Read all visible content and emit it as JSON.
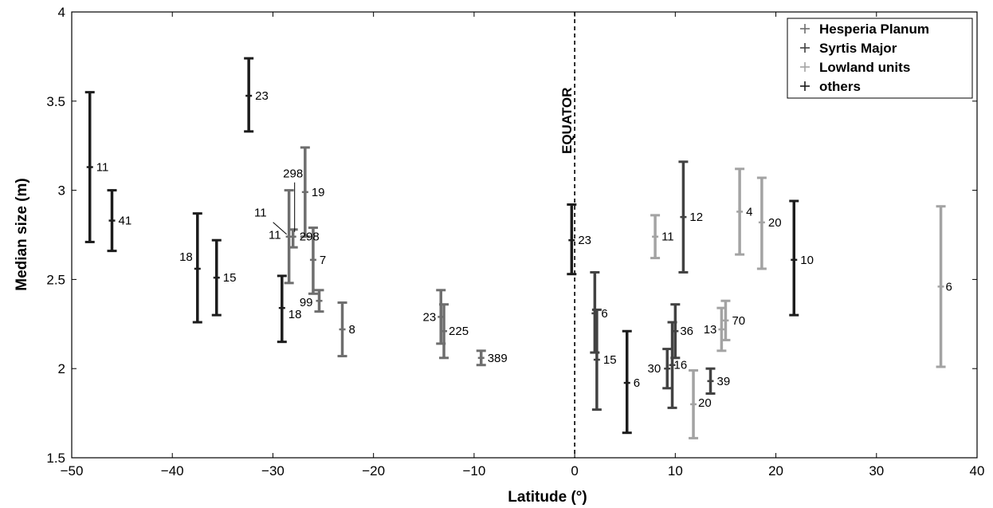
{
  "chart_data": {
    "type": "errorbar",
    "title": "",
    "xlabel": "Latitude (°)",
    "ylabel": "Median size (m)",
    "xlim": [
      -50,
      40
    ],
    "ylim": [
      1.5,
      4
    ],
    "xticks": [
      -50,
      -40,
      -30,
      -20,
      -10,
      0,
      10,
      20,
      30,
      40
    ],
    "xtick_labels": [
      "−50",
      "−40",
      "−30",
      "−20",
      "−10",
      "0",
      "10",
      "20",
      "30",
      "40"
    ],
    "yticks": [
      1.5,
      2,
      2.5,
      3,
      3.5,
      4
    ],
    "ytick_labels": [
      "1.5",
      "2",
      "2.5",
      "3",
      "3.5",
      "4"
    ],
    "grid": false,
    "legend_position": "top-right",
    "annotations": [
      {
        "text": "EQUATOR",
        "x": 0,
        "line": "dashed vertical"
      }
    ],
    "series": [
      {
        "name": "Hesperia Planum",
        "color": "#6e6e6e",
        "points": [
          {
            "x": -28.4,
            "y": 2.74,
            "low": 2.48,
            "high": 3.0,
            "n": "11"
          },
          {
            "x": -28.0,
            "y": 2.74,
            "low": 2.68,
            "high": 2.78,
            "n": "298"
          },
          {
            "x": -26.8,
            "y": 2.99,
            "low": 2.74,
            "high": 3.24,
            "n": "19"
          },
          {
            "x": -26.0,
            "y": 2.61,
            "low": 2.42,
            "high": 2.79,
            "n": "7"
          },
          {
            "x": -25.4,
            "y": 2.38,
            "low": 2.32,
            "high": 2.44,
            "n": "99"
          },
          {
            "x": -23.1,
            "y": 2.22,
            "low": 2.07,
            "high": 2.37,
            "n": "8"
          },
          {
            "x": -13.3,
            "y": 2.29,
            "low": 2.14,
            "high": 2.44,
            "n": "23"
          },
          {
            "x": -13.0,
            "y": 2.21,
            "low": 2.06,
            "high": 2.36,
            "n": "225"
          },
          {
            "x": -9.3,
            "y": 2.06,
            "low": 2.02,
            "high": 2.1,
            "n": "389"
          }
        ]
      },
      {
        "name": "Syrtis Major",
        "color": "#424242",
        "points": [
          {
            "x": 2.0,
            "y": 2.31,
            "low": 2.09,
            "high": 2.54,
            "n": "6"
          },
          {
            "x": 2.2,
            "y": 2.05,
            "low": 1.77,
            "high": 2.33,
            "n": "15"
          },
          {
            "x": 9.2,
            "y": 2.0,
            "low": 1.89,
            "high": 2.11,
            "n": "30"
          },
          {
            "x": 9.7,
            "y": 2.02,
            "low": 1.78,
            "high": 2.26,
            "n": "16"
          },
          {
            "x": 10.0,
            "y": 2.21,
            "low": 2.06,
            "high": 2.36,
            "n": "36"
          },
          {
            "x": 10.8,
            "y": 2.85,
            "low": 2.54,
            "high": 3.16,
            "n": "12"
          },
          {
            "x": 13.5,
            "y": 1.93,
            "low": 1.86,
            "high": 2.0,
            "n": "39"
          }
        ]
      },
      {
        "name": "Lowland units",
        "color": "#a3a3a3",
        "points": [
          {
            "x": 8.0,
            "y": 2.74,
            "low": 2.62,
            "high": 2.86,
            "n": "11"
          },
          {
            "x": 11.8,
            "y": 1.8,
            "low": 1.61,
            "high": 1.99,
            "n": "20"
          },
          {
            "x": 14.6,
            "y": 2.22,
            "low": 2.1,
            "high": 2.34,
            "n": "13"
          },
          {
            "x": 15.0,
            "y": 2.27,
            "low": 2.16,
            "high": 2.38,
            "n": "70"
          },
          {
            "x": 16.4,
            "y": 2.88,
            "low": 2.64,
            "high": 3.12,
            "n": "4"
          },
          {
            "x": 18.6,
            "y": 2.82,
            "low": 2.56,
            "high": 3.07,
            "n": "20"
          },
          {
            "x": 36.4,
            "y": 2.46,
            "low": 2.01,
            "high": 2.91,
            "n": "6"
          }
        ]
      },
      {
        "name": "others",
        "color": "#1c1c1c",
        "points": [
          {
            "x": -48.2,
            "y": 3.13,
            "low": 2.71,
            "high": 3.55,
            "n": "11"
          },
          {
            "x": -46.0,
            "y": 2.83,
            "low": 2.66,
            "high": 3.0,
            "n": "41"
          },
          {
            "x": -37.5,
            "y": 2.56,
            "low": 2.26,
            "high": 2.87,
            "n": "18"
          },
          {
            "x": -35.6,
            "y": 2.51,
            "low": 2.3,
            "high": 2.72,
            "n": "15"
          },
          {
            "x": -32.4,
            "y": 3.53,
            "low": 3.33,
            "high": 3.74,
            "n": "23"
          },
          {
            "x": -29.1,
            "y": 2.34,
            "low": 2.15,
            "high": 2.52,
            "n": "18"
          },
          {
            "x": -0.3,
            "y": 2.72,
            "low": 2.53,
            "high": 2.92,
            "n": "23"
          },
          {
            "x": 5.2,
            "y": 1.92,
            "low": 1.64,
            "high": 2.21,
            "n": "6"
          },
          {
            "x": 21.8,
            "y": 2.61,
            "low": 2.3,
            "high": 2.94,
            "n": "10"
          }
        ]
      }
    ]
  }
}
